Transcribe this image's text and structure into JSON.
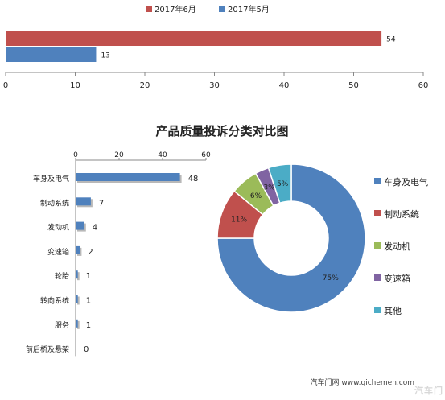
{
  "colors": {
    "jun": "#c0504d",
    "may": "#4f81bd",
    "green": "#9bbb59",
    "purple": "#8064a2",
    "cyan": "#4bacc6",
    "axis": "#888888"
  },
  "chart_data": [
    {
      "type": "bar",
      "orientation": "horizontal",
      "title": "",
      "legend_position": "top",
      "series": [
        {
          "name": "2017年6月",
          "values": [
            54
          ]
        },
        {
          "name": "2017年5月",
          "values": [
            13
          ]
        }
      ],
      "xlim": [
        0,
        60
      ],
      "xticks": [
        "0",
        "10",
        "20",
        "30",
        "40",
        "50",
        "60"
      ],
      "grid": false
    },
    {
      "type": "bar",
      "orientation": "horizontal",
      "title": "产品质量投诉分类对比图",
      "categories": [
        "车身及电气",
        "制动系统",
        "发动机",
        "变速箱",
        "轮胎",
        "转向系统",
        "服务",
        "前后桥及悬架"
      ],
      "values": [
        48,
        7,
        4,
        2,
        1,
        1,
        1,
        0
      ],
      "xlim": [
        0,
        60
      ],
      "xticks": [
        "0",
        "20",
        "40",
        "60"
      ],
      "axis_position": "top",
      "grid": false
    },
    {
      "type": "pie",
      "style": "donut",
      "labels": [
        "车身及电气",
        "制动系统",
        "发动机",
        "变速箱",
        "其他"
      ],
      "values": [
        75,
        11,
        6,
        3,
        5
      ],
      "value_labels": [
        "75%",
        "11%",
        "6%",
        "3%",
        "5%"
      ],
      "legend_position": "right"
    }
  ],
  "watermark": {
    "text": "汽车门网 www.qichemen.com",
    "logo": "汽车门"
  }
}
